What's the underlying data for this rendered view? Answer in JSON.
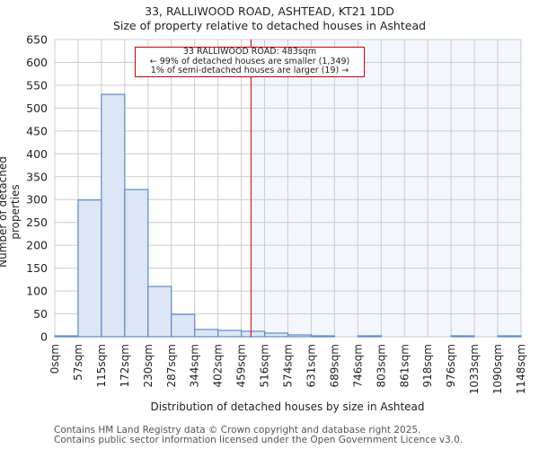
{
  "header": {
    "title": "33, RALLIWOOD ROAD, ASHTEAD, KT21 1DD",
    "subtitle": "Size of property relative to detached houses in Ashtead"
  },
  "annotation": {
    "line1": "33 RALLIWOOD ROAD: 483sqm",
    "line2": "← 99% of detached houses are smaller (1,349)",
    "line3": "1% of semi-detached houses are larger (19) →"
  },
  "footer": {
    "line1": "Contains HM Land Registry data © Crown copyright and database right 2025.",
    "line2": "Contains public sector information licensed under the Open Government Licence v3.0."
  },
  "colors": {
    "bar_fill": "#dce6f4",
    "bar_edge": "#5b8ccc",
    "highlight_bg": "#f3f6fd",
    "marker": "#cc0000",
    "grid": "#cccccc"
  },
  "chart_data": {
    "type": "bar",
    "title": "Size of property relative to detached houses in Ashtead",
    "xlabel": "Distribution of detached houses by size in Ashtead",
    "ylabel": "Number of detached properties",
    "ylim": [
      0,
      650
    ],
    "yticks": [
      0,
      50,
      100,
      150,
      200,
      250,
      300,
      350,
      400,
      450,
      500,
      550,
      600,
      650
    ],
    "grid": true,
    "categories": [
      "0sqm",
      "57sqm",
      "115sqm",
      "172sqm",
      "230sqm",
      "287sqm",
      "344sqm",
      "402sqm",
      "459sqm",
      "516sqm",
      "574sqm",
      "631sqm",
      "689sqm",
      "746sqm",
      "803sqm",
      "861sqm",
      "918sqm",
      "976sqm",
      "1033sqm",
      "1090sqm",
      "1148sqm"
    ],
    "values": [
      2,
      299,
      530,
      322,
      110,
      49,
      16,
      14,
      12,
      8,
      4,
      2,
      0,
      2,
      0,
      0,
      0,
      2,
      0,
      2
    ],
    "marker_value_sqm": 483,
    "marker_label": "33 RALLIWOOD ROAD: 483sqm"
  }
}
